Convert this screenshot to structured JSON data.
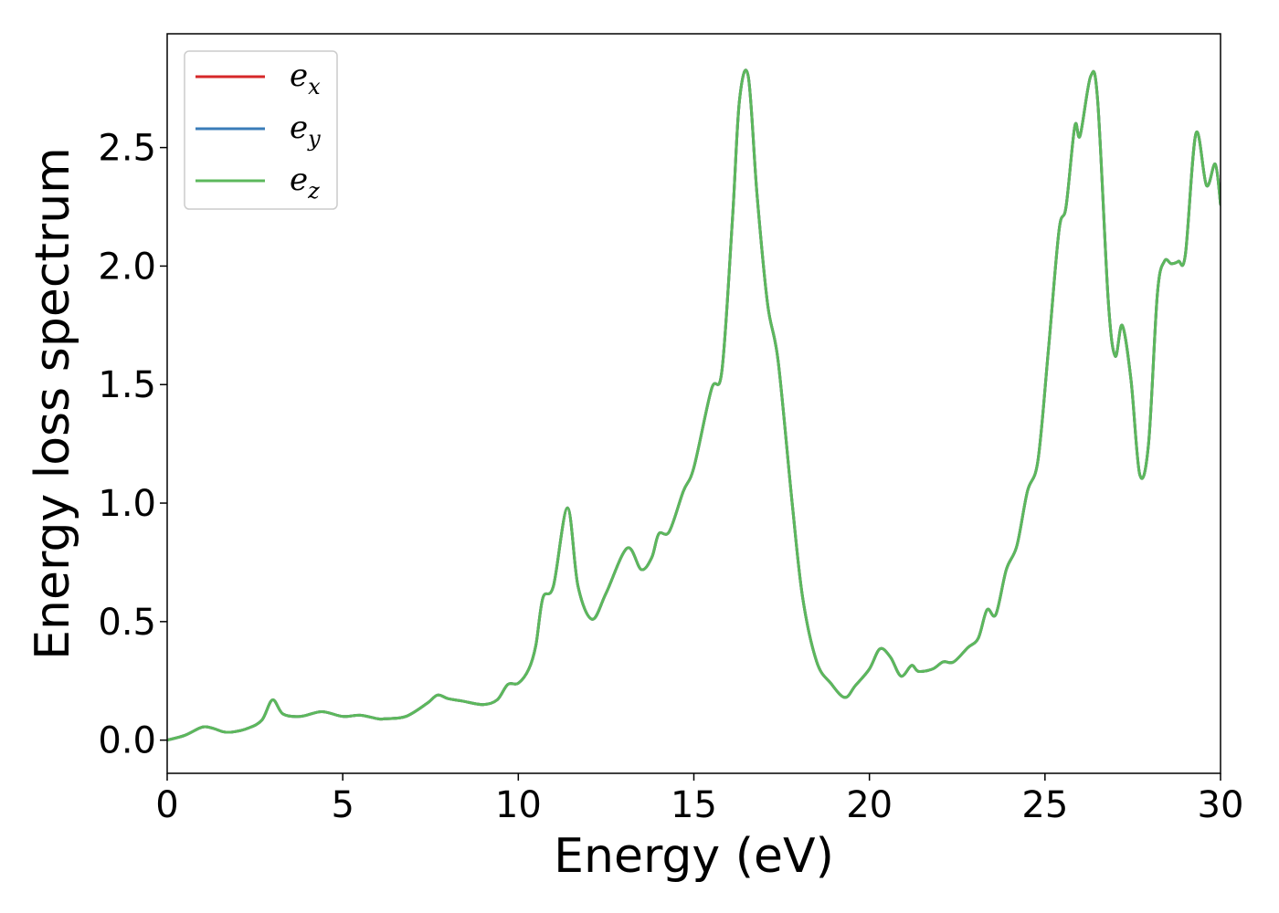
{
  "chart_data": {
    "type": "line",
    "xlabel": "Energy (eV)",
    "ylabel": "Energy loss spectrum",
    "xlim": [
      0,
      30
    ],
    "ylim": [
      -0.14,
      2.98
    ],
    "xticks": [
      0,
      5,
      10,
      15,
      20,
      25,
      30
    ],
    "yticks": [
      0.0,
      0.5,
      1.0,
      1.5,
      2.0,
      2.5
    ],
    "xtick_labels": [
      "0",
      "5",
      "10",
      "15",
      "20",
      "25",
      "30"
    ],
    "ytick_labels": [
      "0.0",
      "0.5",
      "1.0",
      "1.5",
      "2.0",
      "2.5"
    ],
    "grid": false,
    "legend_position": "top-left",
    "series": [
      {
        "name": "e_x",
        "label_base": "e",
        "label_sub": "x",
        "color": "#d62728"
      },
      {
        "name": "e_y",
        "label_base": "e",
        "label_sub": "y",
        "color": "#3a7cb8"
      },
      {
        "name": "e_z",
        "label_base": "e",
        "label_sub": "z",
        "color": "#5cb85c"
      }
    ],
    "x": [
      0,
      0.5,
      1.0,
      1.3,
      1.6,
      1.9,
      2.3,
      2.7,
      3.0,
      3.3,
      3.8,
      4.4,
      5.0,
      5.5,
      6.0,
      6.2,
      6.8,
      7.4,
      7.7,
      8.0,
      8.4,
      9.0,
      9.4,
      9.7,
      10.0,
      10.3,
      10.5,
      10.7,
      11.0,
      11.4,
      11.7,
      12.1,
      12.5,
      13.1,
      13.5,
      13.8,
      14.0,
      14.3,
      14.7,
      15.0,
      15.5,
      15.8,
      16.1,
      16.3,
      16.55,
      16.8,
      17.1,
      17.4,
      17.8,
      18.1,
      18.5,
      18.9,
      19.3,
      19.6,
      20.0,
      20.3,
      20.6,
      20.9,
      21.2,
      21.4,
      21.8,
      22.1,
      22.4,
      22.8,
      23.1,
      23.35,
      23.6,
      23.9,
      24.2,
      24.5,
      24.8,
      25.1,
      25.4,
      25.6,
      25.85,
      26.0,
      26.3,
      26.5,
      26.8,
      27.0,
      27.2,
      27.45,
      27.7,
      27.95,
      28.2,
      28.4,
      28.6,
      28.8,
      29.0,
      29.3,
      29.6,
      29.85,
      30.0
    ],
    "values": [
      0.0,
      0.02,
      0.055,
      0.05,
      0.035,
      0.035,
      0.05,
      0.085,
      0.17,
      0.11,
      0.1,
      0.12,
      0.1,
      0.105,
      0.09,
      0.09,
      0.1,
      0.155,
      0.19,
      0.175,
      0.165,
      0.15,
      0.17,
      0.235,
      0.24,
      0.3,
      0.4,
      0.6,
      0.65,
      0.98,
      0.65,
      0.51,
      0.62,
      0.81,
      0.72,
      0.77,
      0.87,
      0.88,
      1.05,
      1.15,
      1.48,
      1.56,
      2.2,
      2.7,
      2.8,
      2.3,
      1.84,
      1.6,
      1.0,
      0.6,
      0.33,
      0.24,
      0.18,
      0.23,
      0.3,
      0.385,
      0.35,
      0.27,
      0.315,
      0.29,
      0.3,
      0.33,
      0.33,
      0.39,
      0.43,
      0.55,
      0.53,
      0.72,
      0.82,
      1.05,
      1.18,
      1.65,
      2.15,
      2.25,
      2.59,
      2.55,
      2.8,
      2.7,
      1.86,
      1.62,
      1.75,
      1.52,
      1.12,
      1.25,
      1.88,
      2.02,
      2.01,
      2.02,
      2.05,
      2.56,
      2.34,
      2.43,
      2.26
    ]
  }
}
